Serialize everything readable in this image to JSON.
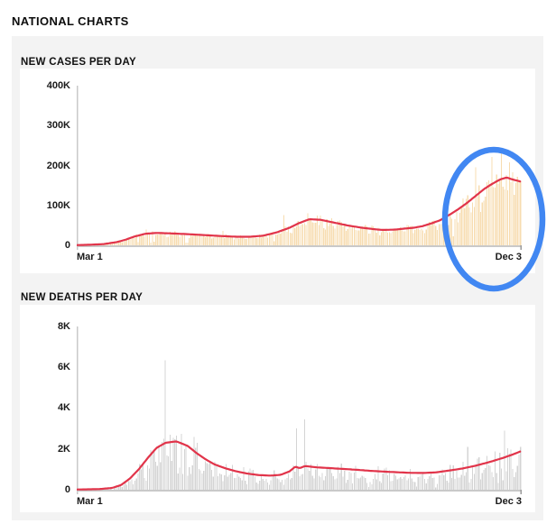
{
  "page": {
    "title": "NATIONAL CHARTS"
  },
  "colors": {
    "panel_bg": "#f3f3f3",
    "card_bg": "#ffffff",
    "trend_line": "#e1344a",
    "cases_bar": "#f7dcb0",
    "deaths_bar": "#d4d4d4",
    "axis": "#c9c9c9",
    "annotation_blue": "#4187f2",
    "text": "#111111"
  },
  "annotation": {
    "shape": "ellipse",
    "meaning": "highlight-recent-case-surge",
    "color": "#4187f2"
  },
  "chart_data": [
    {
      "type": "bar",
      "title": "NEW CASES PER DAY",
      "x_start_label": "Mar 1",
      "x_end_label": "Dec 3",
      "xlabel": "",
      "ylabel": "",
      "ylim": [
        0,
        400000
      ],
      "yticks": [
        {
          "label": "400K",
          "value": 400000
        },
        {
          "label": "300K",
          "value": 300000
        },
        {
          "label": "200K",
          "value": 200000
        },
        {
          "label": "100K",
          "value": 100000
        },
        {
          "label": "0",
          "value": 0
        }
      ],
      "days": 278,
      "grid": false,
      "legend": "none",
      "series_note": "daily bars fluctuate around 7-day average trend line",
      "trend_line_points": [
        [
          0.0,
          500
        ],
        [
          0.03,
          1500
        ],
        [
          0.06,
          3000
        ],
        [
          0.09,
          8000
        ],
        [
          0.11,
          14000
        ],
        [
          0.13,
          22000
        ],
        [
          0.155,
          29000
        ],
        [
          0.18,
          31000
        ],
        [
          0.21,
          30000
        ],
        [
          0.25,
          28000
        ],
        [
          0.29,
          25500
        ],
        [
          0.33,
          23000
        ],
        [
          0.36,
          21500
        ],
        [
          0.39,
          21500
        ],
        [
          0.42,
          24000
        ],
        [
          0.45,
          32000
        ],
        [
          0.48,
          44000
        ],
        [
          0.5,
          55000
        ],
        [
          0.525,
          65500
        ],
        [
          0.55,
          64000
        ],
        [
          0.58,
          57000
        ],
        [
          0.61,
          50000
        ],
        [
          0.64,
          44500
        ],
        [
          0.67,
          40500
        ],
        [
          0.69,
          38500
        ],
        [
          0.72,
          39500
        ],
        [
          0.74,
          42000
        ],
        [
          0.76,
          44000
        ],
        [
          0.78,
          48000
        ],
        [
          0.8,
          55000
        ],
        [
          0.82,
          63000
        ],
        [
          0.84,
          76000
        ],
        [
          0.86,
          90000
        ],
        [
          0.88,
          106000
        ],
        [
          0.9,
          124000
        ],
        [
          0.92,
          142000
        ],
        [
          0.94,
          156000
        ],
        [
          0.955,
          165000
        ],
        [
          0.97,
          170000
        ],
        [
          0.98,
          166000
        ],
        [
          1.0,
          160000
        ]
      ],
      "outlier_bars": [
        [
          0.155,
          40000
        ],
        [
          0.33,
          36000
        ],
        [
          0.465,
          76000
        ],
        [
          0.52,
          80000
        ],
        [
          0.9,
          195000
        ],
        [
          0.935,
          222000
        ],
        [
          0.955,
          230000
        ],
        [
          0.975,
          208000
        ]
      ],
      "noise": {
        "seed": 7,
        "base": 0.78,
        "amp": 0.42,
        "weekend": 0.8
      },
      "bar_color": "#f7dcb0"
    },
    {
      "type": "bar",
      "title": "NEW DEATHS PER DAY",
      "x_start_label": "Mar 1",
      "x_end_label": "Dec 3",
      "xlabel": "",
      "ylabel": "",
      "ylim": [
        0,
        8000
      ],
      "yticks": [
        {
          "label": "8K",
          "value": 8000
        },
        {
          "label": "6K",
          "value": 6000
        },
        {
          "label": "4K",
          "value": 4000
        },
        {
          "label": "2K",
          "value": 2000
        },
        {
          "label": "0",
          "value": 0
        }
      ],
      "days": 278,
      "grid": false,
      "legend": "none",
      "series_note": "daily bars fluctuate around 7-day average trend line",
      "trend_line_points": [
        [
          0.0,
          10
        ],
        [
          0.05,
          30
        ],
        [
          0.08,
          90
        ],
        [
          0.1,
          230
        ],
        [
          0.12,
          550
        ],
        [
          0.14,
          1000
        ],
        [
          0.16,
          1550
        ],
        [
          0.18,
          2050
        ],
        [
          0.2,
          2300
        ],
        [
          0.225,
          2370
        ],
        [
          0.25,
          2150
        ],
        [
          0.27,
          1800
        ],
        [
          0.29,
          1500
        ],
        [
          0.31,
          1250
        ],
        [
          0.335,
          1050
        ],
        [
          0.36,
          900
        ],
        [
          0.385,
          790
        ],
        [
          0.41,
          720
        ],
        [
          0.435,
          690
        ],
        [
          0.46,
          730
        ],
        [
          0.48,
          900
        ],
        [
          0.493,
          1130
        ],
        [
          0.503,
          1060
        ],
        [
          0.515,
          1160
        ],
        [
          0.54,
          1100
        ],
        [
          0.57,
          1060
        ],
        [
          0.6,
          1020
        ],
        [
          0.63,
          980
        ],
        [
          0.66,
          930
        ],
        [
          0.69,
          890
        ],
        [
          0.72,
          860
        ],
        [
          0.75,
          830
        ],
        [
          0.78,
          820
        ],
        [
          0.81,
          850
        ],
        [
          0.84,
          940
        ],
        [
          0.87,
          1040
        ],
        [
          0.9,
          1180
        ],
        [
          0.93,
          1350
        ],
        [
          0.96,
          1550
        ],
        [
          0.98,
          1700
        ],
        [
          1.0,
          1870
        ]
      ],
      "outlier_bars": [
        [
          0.2,
          6350
        ],
        [
          0.493,
          3000
        ],
        [
          0.511,
          3450
        ],
        [
          0.88,
          2100
        ],
        [
          0.965,
          2900
        ]
      ],
      "noise": {
        "seed": 11,
        "base": 0.55,
        "amp": 0.8,
        "weekend": 0.55
      },
      "bar_color": "#d4d4d4"
    }
  ]
}
